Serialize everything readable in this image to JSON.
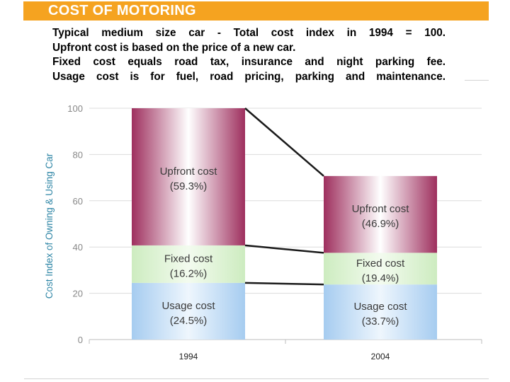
{
  "header": {
    "title": "COST OF MOTORING"
  },
  "description": {
    "lines": [
      "Typical medium size car - Total cost index in 1994 = 100.",
      "Upfront cost is based on the price of a new car.",
      "Fixed cost equals road tax, insurance and night parking fee.",
      "Usage cost is for fuel, road pricing, parking and maintenance."
    ]
  },
  "colors": {
    "title_bar": "#f5a320",
    "upfront": "#9e2f5e",
    "fixed": "#cdecc0",
    "usage": "#a6ccf0",
    "ylabel": "#2f86a6"
  },
  "chart_data": {
    "type": "bar",
    "stacked": true,
    "categories": [
      "1994",
      "2004"
    ],
    "series": [
      {
        "name": "Usage cost",
        "values": [
          24.5,
          23.8
        ],
        "percent_labels": [
          "(24.5%)",
          "(33.7%)"
        ]
      },
      {
        "name": "Fixed cost",
        "values": [
          16.2,
          13.7
        ],
        "percent_labels": [
          "(16.2%)",
          "(19.4%)"
        ]
      },
      {
        "name": "Upfront cost",
        "values": [
          59.3,
          33.2
        ],
        "percent_labels": [
          "(59.3%)",
          "(46.9%)"
        ]
      }
    ],
    "ylabel": "Cost Index of Owning & Using Car",
    "xlabel": "",
    "ylim": [
      0,
      100
    ],
    "yticks": [
      0,
      20,
      40,
      60,
      80,
      100
    ],
    "grid": true,
    "connector_lines": true
  }
}
